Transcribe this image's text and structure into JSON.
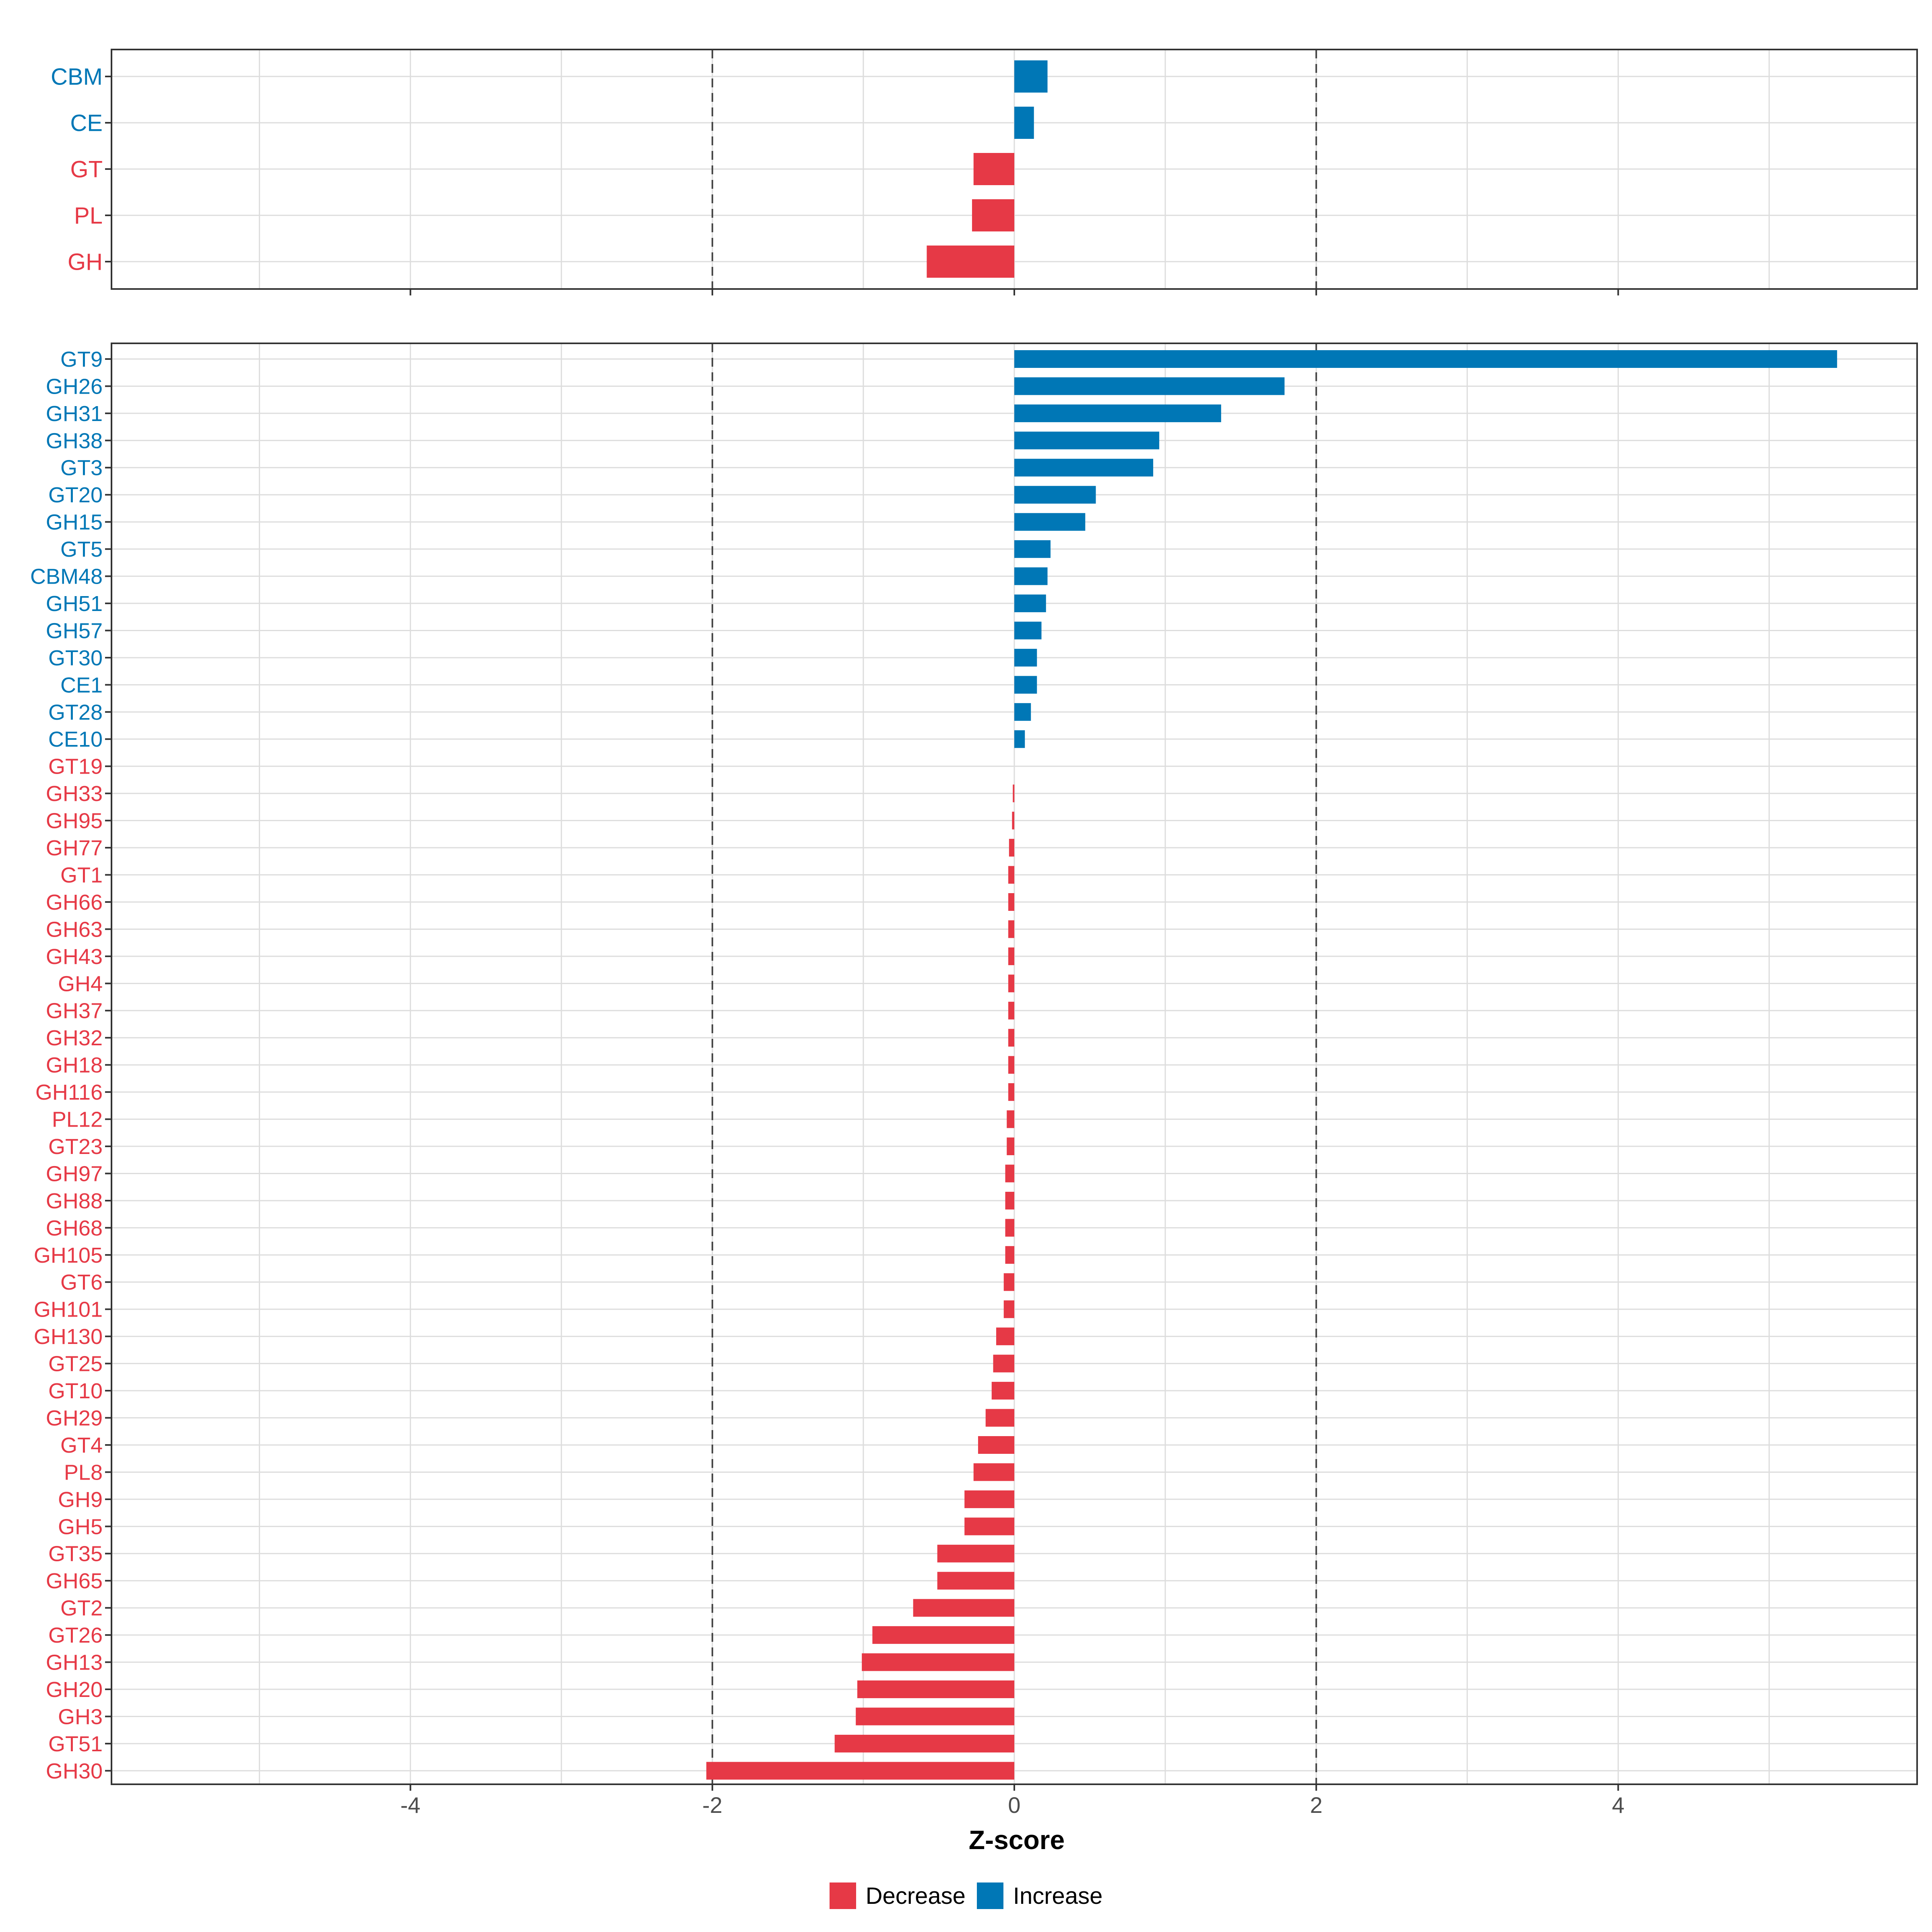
{
  "colors": {
    "decrease": "#E63946",
    "increase": "#0077B6"
  },
  "chart_data": [
    {
      "type": "bar",
      "orientation": "horizontal",
      "panel": "top",
      "categories": [
        "CBM",
        "CE",
        "GT",
        "PL",
        "GH"
      ],
      "values": [
        0.22,
        0.13,
        -0.27,
        -0.28,
        -0.58
      ],
      "xlim": [
        -5.98,
        5.98
      ],
      "reference_lines": [
        -2,
        2
      ],
      "grid": true
    },
    {
      "type": "bar",
      "orientation": "horizontal",
      "panel": "bottom",
      "categories": [
        "GT9",
        "GH26",
        "GH31",
        "GH38",
        "GT3",
        "GT20",
        "GH15",
        "GT5",
        "CBM48",
        "GH51",
        "GH57",
        "GT30",
        "CE1",
        "GT28",
        "CE10",
        "GT19",
        "GH33",
        "GH95",
        "GH77",
        "GT1",
        "GH66",
        "GH63",
        "GH43",
        "GH4",
        "GH37",
        "GH32",
        "GH18",
        "GH116",
        "PL12",
        "GT23",
        "GH97",
        "GH88",
        "GH68",
        "GH105",
        "GT6",
        "GH101",
        "GH130",
        "GT25",
        "GT10",
        "GH29",
        "GT4",
        "PL8",
        "GH9",
        "GH5",
        "GT35",
        "GH65",
        "GT2",
        "GT26",
        "GH13",
        "GH20",
        "GH3",
        "GT51",
        "GH30"
      ],
      "values": [
        5.45,
        1.79,
        1.37,
        0.96,
        0.92,
        0.54,
        0.47,
        0.24,
        0.22,
        0.21,
        0.18,
        0.15,
        0.15,
        0.11,
        0.07,
        0.0,
        -0.01,
        -0.015,
        -0.035,
        -0.04,
        -0.04,
        -0.04,
        -0.04,
        -0.04,
        -0.04,
        -0.04,
        -0.04,
        -0.04,
        -0.05,
        -0.05,
        -0.06,
        -0.06,
        -0.06,
        -0.06,
        -0.07,
        -0.07,
        -0.12,
        -0.14,
        -0.15,
        -0.19,
        -0.24,
        -0.27,
        -0.33,
        -0.33,
        -0.51,
        -0.51,
        -0.67,
        -0.94,
        -1.01,
        -1.04,
        -1.05,
        -1.19,
        -2.04
      ],
      "xlim": [
        -5.98,
        5.98
      ],
      "xticks": [
        -4,
        -2,
        0,
        2,
        4
      ],
      "xlabel": "Z-score",
      "reference_lines": [
        -2,
        2
      ],
      "grid": true
    }
  ],
  "legend": {
    "position": "bottom",
    "items": [
      {
        "label": "Decrease",
        "color": "#E63946"
      },
      {
        "label": "Increase",
        "color": "#0077B6"
      }
    ]
  }
}
